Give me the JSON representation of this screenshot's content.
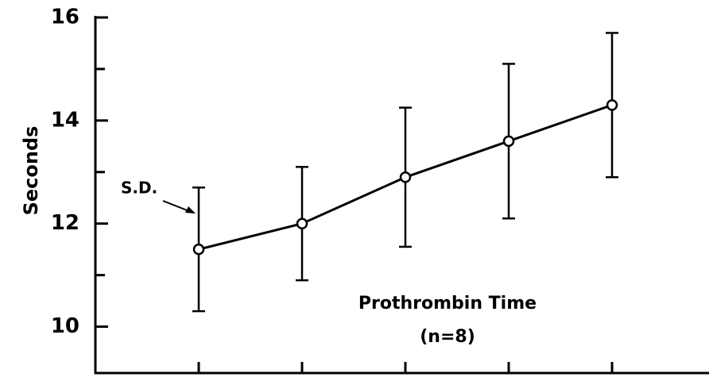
{
  "chart_data": {
    "type": "line",
    "y_label": "Seconds",
    "categories": [
      null,
      null,
      null,
      null,
      null
    ],
    "series": [
      {
        "color": "#000000",
        "values": [
          11.5,
          12.0,
          12.9,
          13.6,
          14.3
        ],
        "errors": [
          1.2,
          1.1,
          1.35,
          1.5,
          1.4
        ]
      }
    ],
    "ylim": [
      9.1,
      16
    ],
    "yticks": [
      10,
      12,
      14,
      16
    ],
    "minor_yticks": [
      11,
      13,
      15
    ],
    "annotations": [
      "S.D.",
      "Prothrombin Time",
      "(n=8)"
    ]
  }
}
